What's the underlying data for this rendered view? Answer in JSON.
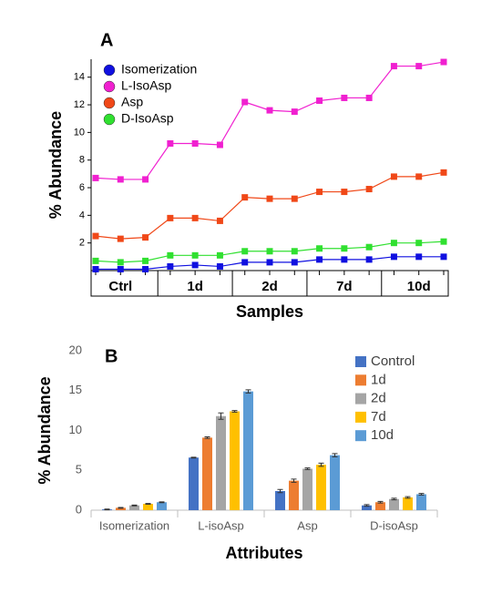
{
  "chart_data": [
    {
      "type": "line",
      "title": "A",
      "xlabel": "Samples",
      "ylabel": "% Abundance",
      "categories": [
        null,
        "Ctrl",
        null,
        null,
        "1d",
        null,
        null,
        "2d",
        null,
        null,
        "7d",
        null,
        null,
        "10d",
        null
      ],
      "ylim": [
        0,
        15.3
      ],
      "yticks": [
        2,
        4,
        6,
        8,
        10,
        12,
        14
      ],
      "grid": false,
      "legend": "upper left",
      "series": [
        {
          "name": "Isomerization",
          "color": "#1010e0",
          "values": [
            0.1,
            0.1,
            0.1,
            0.3,
            0.4,
            0.3,
            0.6,
            0.6,
            0.6,
            0.8,
            0.8,
            0.8,
            1.0,
            1.0,
            1.0
          ]
        },
        {
          "name": "L-IsoAsp",
          "color": "#f020d0",
          "values": [
            6.7,
            6.6,
            6.6,
            9.2,
            9.2,
            9.1,
            12.2,
            11.6,
            11.5,
            12.3,
            12.5,
            12.5,
            14.8,
            14.8,
            15.1
          ]
        },
        {
          "name": "Asp",
          "color": "#f04818",
          "values": [
            2.5,
            2.3,
            2.4,
            3.8,
            3.8,
            3.6,
            5.3,
            5.2,
            5.2,
            5.7,
            5.7,
            5.9,
            6.8,
            6.8,
            7.1
          ]
        },
        {
          "name": "D-IsoAsp",
          "color": "#30e030",
          "values": [
            0.7,
            0.6,
            0.7,
            1.1,
            1.1,
            1.1,
            1.4,
            1.4,
            1.4,
            1.6,
            1.6,
            1.7,
            2.0,
            2.0,
            2.1
          ]
        }
      ]
    },
    {
      "type": "bar",
      "title": "B",
      "xlabel": "Attributes",
      "ylabel": "% Abundance",
      "categories": [
        "Isomerization",
        "L-isoAsp",
        "Asp",
        "D-isoAsp"
      ],
      "ylim": [
        0,
        20
      ],
      "yticks": [
        0,
        5,
        10,
        15,
        20
      ],
      "grid": false,
      "legend": "upper right",
      "series": [
        {
          "name": "Control",
          "color": "#4472c4",
          "values": [
            0.1,
            6.6,
            2.4,
            0.6
          ],
          "errors": [
            0.05,
            0.05,
            0.2,
            0.1
          ]
        },
        {
          "name": "1d",
          "color": "#ed7d31",
          "values": [
            0.3,
            9.1,
            3.7,
            1.0
          ],
          "errors": [
            0.05,
            0.1,
            0.2,
            0.1
          ]
        },
        {
          "name": "2d",
          "color": "#a5a5a5",
          "values": [
            0.6,
            11.8,
            5.2,
            1.4
          ],
          "errors": [
            0.05,
            0.4,
            0.1,
            0.1
          ]
        },
        {
          "name": "7d",
          "color": "#ffc000",
          "values": [
            0.8,
            12.4,
            5.7,
            1.6
          ],
          "errors": [
            0.05,
            0.1,
            0.2,
            0.1
          ]
        },
        {
          "name": "10d",
          "color": "#5b9bd5",
          "values": [
            1.0,
            14.9,
            6.9,
            2.0
          ],
          "errors": [
            0.05,
            0.2,
            0.2,
            0.1
          ]
        }
      ]
    }
  ]
}
